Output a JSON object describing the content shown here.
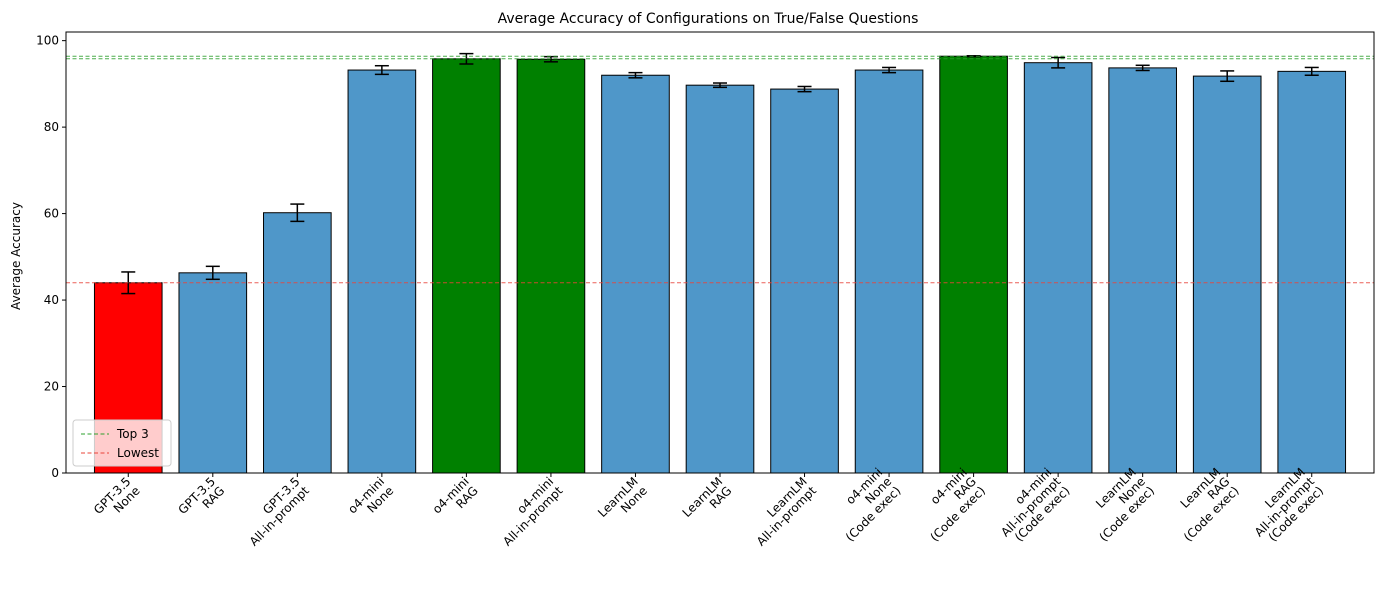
{
  "chart_data": {
    "type": "bar",
    "title": "Average Accuracy of Configurations on True/False Questions",
    "xlabel": "",
    "ylabel": "Average Accuracy",
    "ylim": [
      0,
      102
    ],
    "yticks": [
      0,
      20,
      40,
      60,
      80,
      100
    ],
    "grid": false,
    "legend_position": "lower-left",
    "categories": [
      "GPT-3.5\nNone",
      "GPT-3.5\nRAG",
      "GPT-3.5\nAll-in-prompt",
      "o4-mini\nNone",
      "o4-mini\nRAG",
      "o4-mini\nAll-in-prompt",
      "LearnLM\nNone",
      "LearnLM\nRAG",
      "LearnLM\nAll-in-prompt",
      "o4-mini\nNone\n(Code exec)",
      "o4-mini\nRAG\n(Code exec)",
      "o4-mini\nAll-in-prompt\n(Code exec)",
      "LearnLM\nNone\n(Code exec)",
      "LearnLM\nRAG\n(Code exec)",
      "LearnLM\nAll-in-prompt\n(Code exec)"
    ],
    "values": [
      44.0,
      46.3,
      60.2,
      93.2,
      95.8,
      95.7,
      92.0,
      89.7,
      88.8,
      93.2,
      96.4,
      94.9,
      93.7,
      91.8,
      92.9
    ],
    "errors": [
      2.5,
      1.5,
      2.0,
      1.0,
      1.2,
      0.6,
      0.6,
      0.5,
      0.6,
      0.6,
      0.1,
      1.2,
      0.6,
      1.2,
      0.9
    ],
    "highlight": [
      "lowest",
      "normal",
      "normal",
      "normal",
      "top",
      "top",
      "normal",
      "normal",
      "normal",
      "normal",
      "top",
      "normal",
      "normal",
      "normal",
      "normal"
    ],
    "reference_lines": [
      {
        "label": "Top 3",
        "values": [
          96.4,
          95.8
        ],
        "color": "#2ca02c"
      },
      {
        "label": "Lowest",
        "values": [
          44.0
        ],
        "color": "#e8443a"
      }
    ],
    "colors": {
      "normal": "#4f97c9",
      "top": "#008000",
      "lowest": "#ff0000",
      "edge": "#000000"
    },
    "legend": [
      {
        "label": "Top 3",
        "color": "#2ca02c"
      },
      {
        "label": "Lowest",
        "color": "#e8443a"
      }
    ]
  }
}
